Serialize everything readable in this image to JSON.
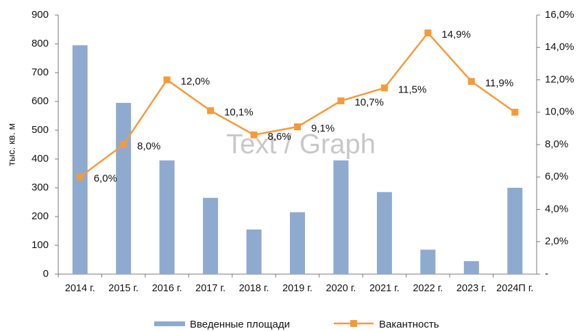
{
  "chart_data": {
    "type": "bar_line",
    "ylabel": "тыс. кв. м",
    "watermark": "Text / Graph",
    "categories": [
      "2014 г.",
      "2015 г.",
      "2016 г.",
      "2017 г.",
      "2018 г.",
      "2019 г.",
      "2020 г.",
      "2021 г.",
      "2022 г.",
      "2023 г.",
      "2024П г."
    ],
    "series": [
      {
        "name": "Введенные площади",
        "type": "bar",
        "color": "#8faacf",
        "values": [
          795,
          595,
          395,
          265,
          155,
          215,
          395,
          285,
          85,
          45,
          300
        ]
      },
      {
        "name": "Вакантность",
        "type": "line",
        "axis": "y2",
        "color": "#f59a3a",
        "values": [
          6.0,
          8.0,
          12.0,
          10.1,
          8.6,
          9.1,
          10.7,
          11.5,
          14.9,
          11.9,
          10.0
        ],
        "value_labels": [
          "6,0%",
          "8,0%",
          "12,0%",
          "10,1%",
          "8,6%",
          "9,1%",
          "10,7%",
          "11,5%",
          "14,9%",
          "11,9%",
          null
        ]
      }
    ],
    "ylim": [
      0,
      900
    ],
    "yticks": [
      0,
      100,
      200,
      300,
      400,
      500,
      600,
      700,
      800,
      900
    ],
    "y2lim": [
      0,
      16
    ],
    "y2ticks": [
      {
        "value": 0,
        "label": "-"
      },
      {
        "value": 2,
        "label": "2,0%"
      },
      {
        "value": 4,
        "label": "4,0%"
      },
      {
        "value": 6,
        "label": "6,0%"
      },
      {
        "value": 8,
        "label": "8,0%"
      },
      {
        "value": 10,
        "label": "10,0%"
      },
      {
        "value": 12,
        "label": "12,0%"
      },
      {
        "value": 14,
        "label": "14,0%"
      },
      {
        "value": 16,
        "label": "16,0%"
      }
    ],
    "legend": "bottom"
  }
}
